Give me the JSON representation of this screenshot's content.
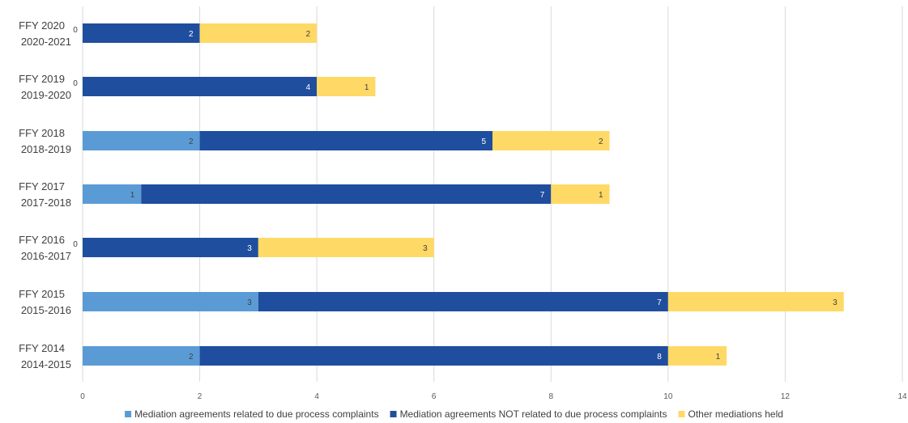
{
  "chart_data": {
    "type": "bar",
    "orientation": "horizontal",
    "stacked": true,
    "title": "",
    "categories": [
      [
        "FFY 2020",
        "2020-2021"
      ],
      [
        "FFY 2019",
        "2019-2020"
      ],
      [
        "FFY 2018",
        "2018-2019"
      ],
      [
        "FFY 2017",
        "2017-2018"
      ],
      [
        "FFY 2016",
        "2016-2017"
      ],
      [
        "FFY 2015",
        "2015-2016"
      ],
      [
        "FFY 2014",
        "2014-2015"
      ]
    ],
    "series": [
      {
        "name": "Mediation agreements related to due process complaints",
        "values": [
          0,
          0,
          2,
          1,
          0,
          3,
          2
        ],
        "color": "#5B9BD5",
        "label_color": "#404040"
      },
      {
        "name": "Mediation agreements NOT related to due process complaints",
        "values": [
          2,
          4,
          5,
          7,
          3,
          7,
          8
        ],
        "color": "#1F4E9E",
        "label_color": "#ffffff"
      },
      {
        "name": "Other mediations held",
        "values": [
          2,
          1,
          2,
          1,
          3,
          3,
          1
        ],
        "color": "#FFD966",
        "label_color": "#404040"
      }
    ],
    "xlim": [
      0,
      14
    ],
    "xticks": [
      0,
      2,
      4,
      6,
      8,
      10,
      12,
      14
    ],
    "xlabel": "",
    "ylabel": "",
    "grid": "vertical",
    "legend": "bottom"
  }
}
